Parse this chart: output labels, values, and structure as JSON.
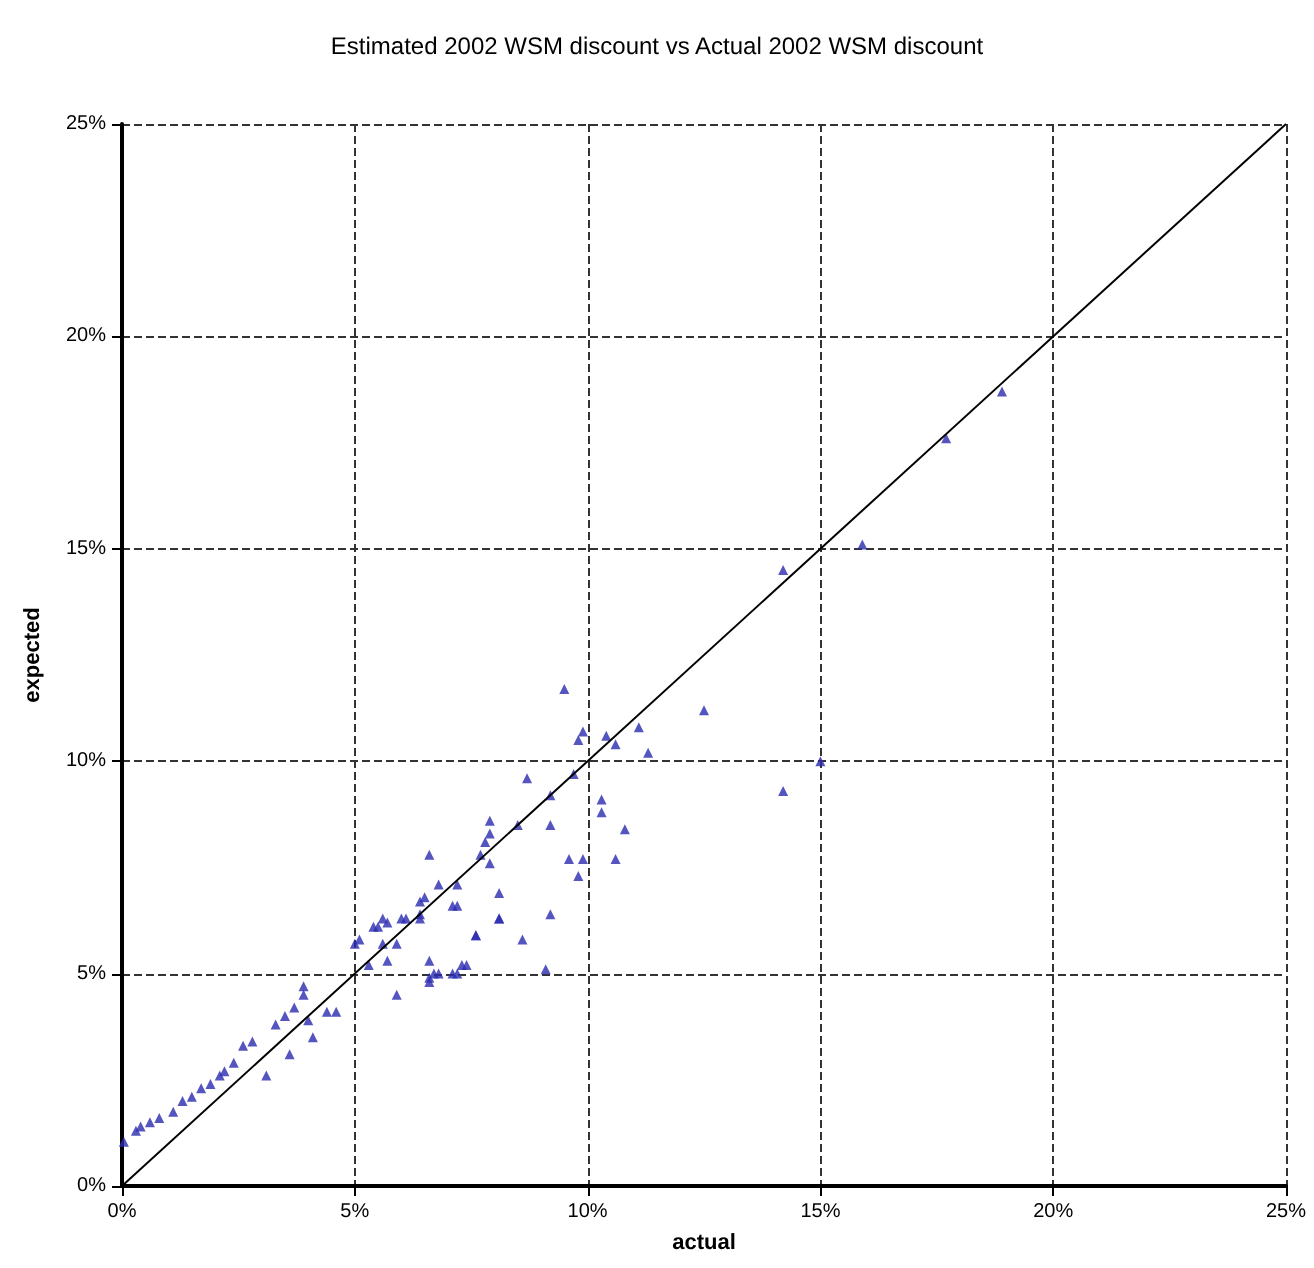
{
  "chart_data": {
    "type": "scatter",
    "title": "Estimated 2002 WSM discount vs Actual 2002 WSM discount",
    "xlabel": "actual",
    "ylabel": "expected",
    "xlim": [
      0,
      25
    ],
    "ylim": [
      0,
      25
    ],
    "xticks": [
      {
        "value": 0,
        "label": "0%"
      },
      {
        "value": 5,
        "label": "5%"
      },
      {
        "value": 10,
        "label": "10%"
      },
      {
        "value": 15,
        "label": "15%"
      },
      {
        "value": 20,
        "label": "20%"
      },
      {
        "value": 25,
        "label": "25%"
      }
    ],
    "yticks": [
      {
        "value": 0,
        "label": "0%"
      },
      {
        "value": 5,
        "label": "5%"
      },
      {
        "value": 10,
        "label": "10%"
      },
      {
        "value": 15,
        "label": "15%"
      },
      {
        "value": 20,
        "label": "20%"
      },
      {
        "value": 25,
        "label": "25%"
      }
    ],
    "grid": true,
    "marker": "triangle",
    "series": [
      {
        "type": "scatter",
        "color": "#2b2bb0",
        "x": [
          0.04,
          0.3,
          0.4,
          0.6,
          0.8,
          1.1,
          1.3,
          1.5,
          1.7,
          1.9,
          2.1,
          2.2,
          2.4,
          2.6,
          2.8,
          3.1,
          3.6,
          3.3,
          3.5,
          3.7,
          3.9,
          3.9,
          4.0,
          4.1,
          4.4,
          4.6,
          5.0,
          5.1,
          5.3,
          5.5,
          5.7,
          5.6,
          5.7,
          5.9,
          6.0,
          6.4,
          6.6,
          6.8,
          6.6,
          7.1,
          7.4,
          7.6,
          8.1,
          7.2,
          8.7,
          9.2,
          9.7,
          10.3,
          10.3,
          10.8,
          7.9,
          8.5,
          9.2,
          7.9,
          7.8,
          7.7,
          7.9,
          6.6,
          7.2,
          6.8,
          6.5,
          6.4,
          7.1,
          6.1,
          5.6,
          5.4,
          6.4,
          8.1,
          8.1,
          7.6,
          9.2,
          8.6,
          9.6,
          9.9,
          10.6,
          9.8,
          6.6,
          7.2,
          6.7,
          7.3,
          9.1,
          5.9,
          9.5,
          9.8,
          10.4,
          10.6,
          11.1,
          12.5,
          11.3,
          14.2,
          15.0,
          9.9,
          14.2,
          15.9,
          17.7,
          18.9
        ],
        "values": [
          1.04,
          1.3,
          1.4,
          1.5,
          1.6,
          1.75,
          2.0,
          2.1,
          2.3,
          2.4,
          2.6,
          2.7,
          2.9,
          3.3,
          3.4,
          2.6,
          3.1,
          3.8,
          4.0,
          4.2,
          4.5,
          4.7,
          3.9,
          3.5,
          4.1,
          4.1,
          5.7,
          5.8,
          5.2,
          6.1,
          6.2,
          5.7,
          5.3,
          4.5,
          6.3,
          6.4,
          5.3,
          5.0,
          4.8,
          5.0,
          5.2,
          5.9,
          6.3,
          6.6,
          9.6,
          9.2,
          9.7,
          9.1,
          8.8,
          8.4,
          8.6,
          8.5,
          8.5,
          8.3,
          8.1,
          7.8,
          7.6,
          7.8,
          7.1,
          7.1,
          6.8,
          6.7,
          6.6,
          6.3,
          6.3,
          6.1,
          6.3,
          6.9,
          6.3,
          5.9,
          6.4,
          5.8,
          7.7,
          7.7,
          7.7,
          7.3,
          4.9,
          5.0,
          5.0,
          5.2,
          5.1,
          5.7,
          11.7,
          10.5,
          10.6,
          10.4,
          10.8,
          11.2,
          10.2,
          9.3,
          10.0,
          10.7,
          14.5,
          15.1,
          17.6,
          18.7
        ]
      },
      {
        "type": "line",
        "color": "#000000",
        "marker": "none",
        "x": [
          0,
          25
        ],
        "values": [
          0,
          25
        ]
      }
    ]
  }
}
